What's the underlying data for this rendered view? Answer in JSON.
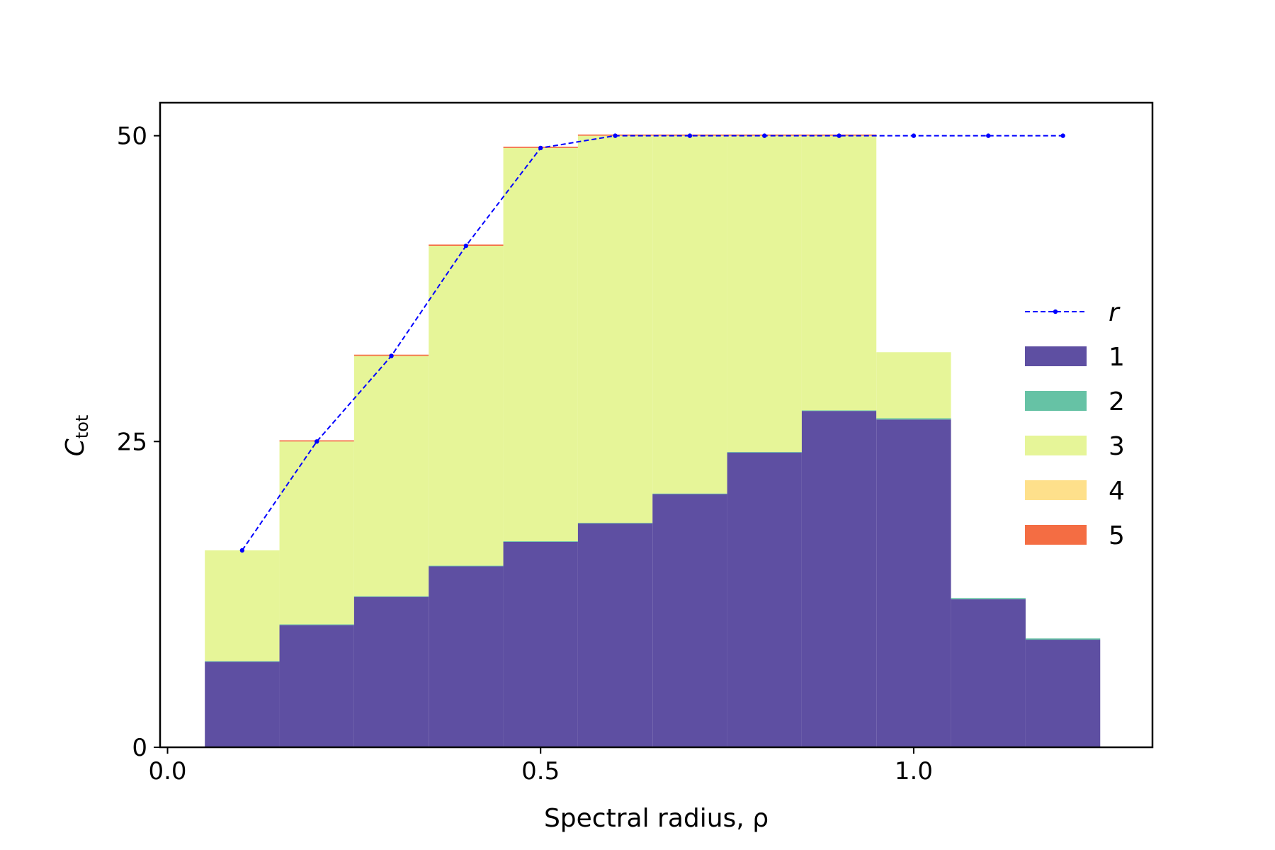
{
  "chart_data": {
    "type": "bar",
    "stacked": true,
    "xlabel": "Spectral radius, ρ",
    "ylabel_main": "C",
    "ylabel_sub": "tot",
    "xlim": [
      -0.01,
      1.32
    ],
    "ylim": [
      0,
      52.7
    ],
    "xticks": [
      0.0,
      0.5,
      1.0
    ],
    "xtick_labels": [
      "0.0",
      "0.5",
      "1.0"
    ],
    "yticks": [
      0,
      25,
      50
    ],
    "ytick_labels": [
      "0",
      "25",
      "50"
    ],
    "grid": false,
    "legend_position": "right",
    "x": [
      0.1,
      0.2,
      0.3,
      0.4,
      0.5,
      0.6,
      0.7,
      0.8,
      0.9,
      1.0,
      1.1,
      1.2
    ],
    "bar_width": 0.1,
    "series": [
      {
        "name": "1",
        "color": "#5e4fa2",
        "values": [
          7.0,
          10.0,
          12.3,
          14.8,
          16.8,
          18.3,
          20.7,
          24.1,
          27.5,
          26.8,
          12.1,
          8.8
        ]
      },
      {
        "name": "2",
        "color": "#66c2a5",
        "values": [
          0.05,
          0.05,
          0.05,
          0.05,
          0.05,
          0.05,
          0.05,
          0.05,
          0.05,
          0.1,
          0.1,
          0.1
        ]
      },
      {
        "name": "3",
        "color": "#e6f598",
        "values": [
          9.05,
          14.95,
          19.65,
          26.15,
          32.15,
          31.65,
          29.25,
          25.85,
          22.45,
          5.4,
          0,
          0
        ]
      },
      {
        "name": "4",
        "color": "#fee08b",
        "values": [
          0,
          0,
          0,
          0,
          0,
          0,
          0,
          0,
          0,
          0,
          0,
          0
        ]
      },
      {
        "name": "5",
        "color": "#f46d43",
        "values": [
          0,
          0.1,
          0.1,
          0.1,
          0.1,
          0.1,
          0.1,
          0.1,
          0.1,
          0,
          0,
          0
        ]
      }
    ],
    "line_series": {
      "name": "r",
      "color": "#0000ff",
      "x": [
        0.1,
        0.2,
        0.3,
        0.4,
        0.5,
        0.6,
        0.7,
        0.8,
        0.9,
        1.0,
        1.1,
        1.2
      ],
      "y": [
        16.1,
        25.0,
        32.0,
        41.0,
        49.0,
        50.0,
        50.0,
        50.0,
        50.0,
        50.0,
        50.0,
        50.0
      ]
    }
  }
}
